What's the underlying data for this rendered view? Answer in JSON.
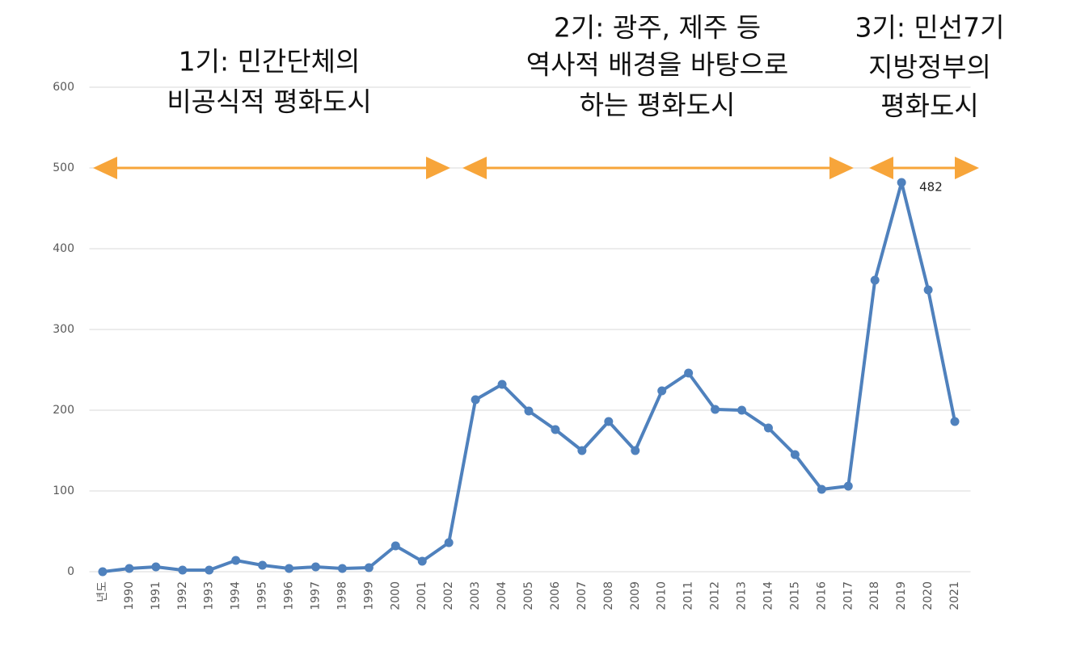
{
  "chart_data": {
    "type": "line",
    "categories": [
      "년도",
      "1990",
      "1991",
      "1992",
      "1993",
      "1994",
      "1995",
      "1996",
      "1997",
      "1998",
      "1999",
      "2000",
      "2001",
      "2002",
      "2003",
      "2004",
      "2005",
      "2006",
      "2007",
      "2008",
      "2009",
      "2010",
      "2011",
      "2012",
      "2013",
      "2014",
      "2015",
      "2016",
      "2017",
      "2018",
      "2019",
      "2020",
      "2021"
    ],
    "values": [
      0,
      4,
      6,
      2,
      2,
      14,
      8,
      4,
      6,
      4,
      5,
      32,
      13,
      36,
      213,
      232,
      199,
      176,
      150,
      186,
      150,
      224,
      246,
      201,
      200,
      178,
      145,
      102,
      106,
      361,
      482,
      349,
      186
    ],
    "color": "#4f81bd",
    "ylim": [
      0,
      600
    ],
    "yticks": [
      0,
      100,
      200,
      300,
      400,
      500,
      600
    ],
    "grid": true,
    "annotations": [
      {
        "lines": [
          "1기: 민간단체의",
          "비공식적 평화도시"
        ]
      },
      {
        "lines": [
          "2기: 광주, 제주 등",
          "역사적 배경을 바탕으로",
          "하는 평화도시"
        ]
      },
      {
        "lines": [
          "3기: 민선7기",
          "지방정부의",
          "평화도시"
        ]
      }
    ]
  }
}
